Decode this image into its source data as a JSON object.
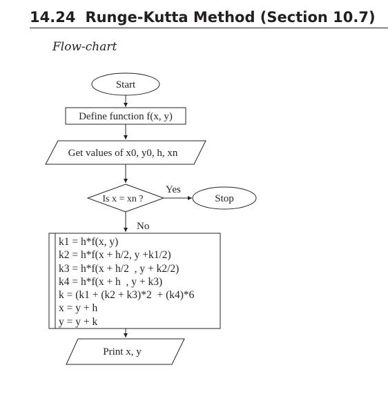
{
  "section": {
    "number": "14.24",
    "title": "Runge-Kutta Method (Section 10.7)",
    "subtitle": "Flow-chart"
  },
  "flowchart": {
    "start": "Start",
    "define": "Define function f(x, y)",
    "input": "Get values of x0, y0, h, xn",
    "decision": "Is x = xn ?",
    "yes_label": "Yes",
    "no_label": "No",
    "stop": "Stop",
    "process_lines": [
      "k1 = h*f(x, y)",
      "k2 = h*f(x + h/2, y +k1/2)",
      "k3 = h*f(x + h/2  , y + k2/2)",
      "k4 = h*f(x + h  , y + k3)",
      "k = (k1 + (k2 + k3)*2  + (k4)*6",
      "x = y + h",
      "y = y + k"
    ],
    "output": "Print x, y"
  },
  "colors": {
    "ink": "#231f20",
    "background": "#ffffff"
  }
}
